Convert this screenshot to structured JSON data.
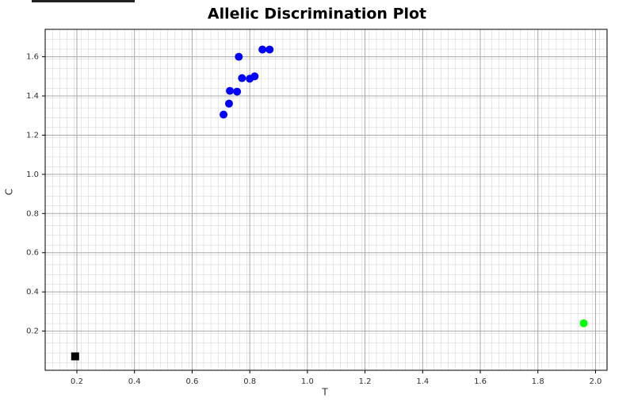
{
  "chart_data": {
    "type": "scatter",
    "title": "Allelic Discrimination Plot",
    "x_label": "T",
    "y_label": "C",
    "xlim": [
      0.09,
      2.04
    ],
    "ylim": [
      0.0,
      1.74
    ],
    "xticks": [
      0.2,
      0.4,
      0.6,
      0.8,
      {
        "value": 1.0,
        "label": "1.0"
      },
      1.2,
      1.4,
      1.6,
      1.8,
      {
        "value": 2.0,
        "label": "2.0"
      }
    ],
    "yticks": [
      0.2,
      0.4,
      0.6,
      0.8,
      {
        "value": 1.0,
        "label": "1.0"
      },
      1.2,
      1.4,
      1.6
    ],
    "grid": true,
    "series": [
      {
        "color": "#0000ff",
        "marker": "circle",
        "x": [
          0.709,
          0.728,
          0.731,
          0.756,
          0.762,
          0.773,
          0.8,
          0.817,
          0.844,
          0.869
        ],
        "y": [
          1.305,
          1.361,
          1.426,
          1.422,
          1.6,
          1.491,
          1.488,
          1.5,
          1.637,
          1.637
        ]
      },
      {
        "color": "#00ff00",
        "marker": "circle",
        "x": [
          1.959
        ],
        "y": [
          0.24
        ]
      },
      {
        "color": "#000000",
        "marker": "square",
        "x": [
          0.194
        ],
        "y": [
          0.071
        ]
      }
    ]
  }
}
